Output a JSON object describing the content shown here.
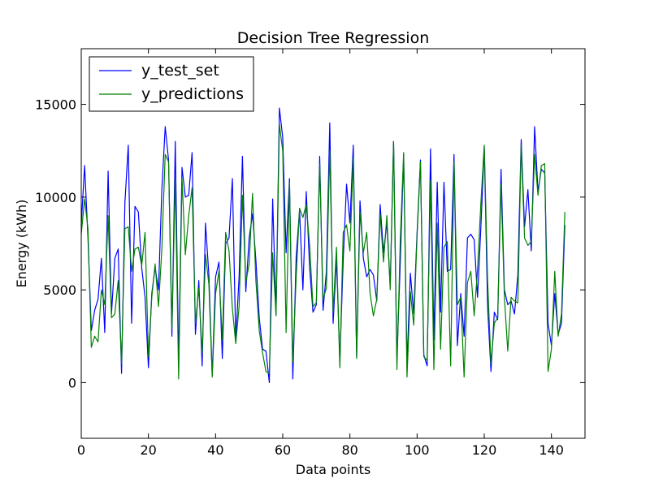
{
  "chart_data": {
    "type": "line",
    "title": "Decision Tree Regression",
    "xlabel": "Data points",
    "ylabel": "Energy (kWh)",
    "xlim": [
      0,
      150
    ],
    "ylim": [
      -3000,
      18000
    ],
    "xticks": [
      0,
      20,
      40,
      60,
      80,
      100,
      120,
      140
    ],
    "yticks": [
      0,
      5000,
      10000,
      15000
    ],
    "xtick_labels": [
      "0",
      "20",
      "40",
      "60",
      "80",
      "100",
      "120",
      "140"
    ],
    "ytick_labels": [
      "0",
      "5000",
      "10000",
      "15000"
    ],
    "grid": false,
    "legend_position": "top-left",
    "series": [
      {
        "name": "y_test_set",
        "color": "#0000ff",
        "values": [
          8500,
          11700,
          7800,
          2800,
          3900,
          4500,
          6700,
          2700,
          11400,
          3700,
          6700,
          7200,
          500,
          9700,
          12800,
          3200,
          9500,
          9200,
          6200,
          4600,
          800,
          4800,
          6200,
          5000,
          10400,
          13800,
          12000,
          2500,
          13000,
          1100,
          11600,
          10000,
          10100,
          12400,
          2600,
          5500,
          900,
          8600,
          5800,
          400,
          5700,
          6500,
          1300,
          7500,
          7800,
          11000,
          2300,
          5700,
          12200,
          4900,
          7800,
          9100,
          6600,
          3500,
          1800,
          1700,
          0,
          9900,
          3700,
          14800,
          13200,
          7000,
          11000,
          200,
          6800,
          9300,
          5000,
          10300,
          6200,
          3800,
          4200,
          12200,
          3900,
          6000,
          14000,
          3200,
          6700,
          1200,
          6600,
          10700,
          8600,
          12800,
          1400,
          9800,
          6700,
          5700,
          6100,
          5800,
          4400,
          9600,
          7000,
          8600,
          5200,
          13000,
          1300,
          6500,
          12300,
          1000,
          5900,
          3700,
          8100,
          12000,
          1500,
          900,
          12600,
          2300,
          10800,
          3800,
          10800,
          6000,
          6100,
          12300,
          2000,
          4800,
          2500,
          7800,
          8000,
          7700,
          4600,
          8400,
          12700,
          4100,
          600,
          3800,
          3400,
          11500,
          5000,
          4200,
          4400,
          3700,
          5800,
          13100,
          8400,
          10400,
          7100,
          13800,
          10300,
          11500,
          11300,
          3200,
          2000,
          4800,
          2600,
          3200,
          8500
        ]
      },
      {
        "name": "y_predictions",
        "color": "#008000",
        "values": [
          8000,
          9900,
          8300,
          1900,
          2500,
          2200,
          5000,
          4200,
          9000,
          3500,
          3700,
          5500,
          1000,
          8300,
          8400,
          6000,
          7200,
          7300,
          6300,
          8100,
          1400,
          4600,
          6400,
          4100,
          7200,
          12300,
          11900,
          2900,
          11000,
          200,
          11000,
          6900,
          9000,
          10500,
          3200,
          5100,
          1600,
          6900,
          5300,
          300,
          4800,
          6000,
          2300,
          8100,
          7100,
          4000,
          2100,
          4100,
          10100,
          5400,
          6400,
          10200,
          5500,
          2800,
          1600,
          600,
          500,
          7000,
          3600,
          13900,
          12500,
          2700,
          10800,
          1100,
          5700,
          9400,
          8900,
          9600,
          7400,
          4100,
          4300,
          11800,
          4500,
          5100,
          12500,
          3800,
          7300,
          800,
          8100,
          8500,
          7100,
          12100,
          1300,
          9200,
          7000,
          8100,
          4800,
          3600,
          4500,
          9100,
          6500,
          9000,
          5000,
          13000,
          700,
          7700,
          12400,
          300,
          4900,
          3100,
          7900,
          11900,
          1400,
          1200,
          10900,
          700,
          8600,
          1800,
          7300,
          7600,
          900,
          11900,
          4200,
          4600,
          300,
          5400,
          6000,
          3600,
          6100,
          9700,
          12800,
          5500,
          1000,
          3200,
          3500,
          10700,
          4600,
          1700,
          4600,
          4400,
          4300,
          12800,
          7800,
          7400,
          7600,
          12300,
          10100,
          11700,
          11800,
          600,
          1800,
          6000,
          2500,
          3700,
          9200
        ]
      }
    ]
  }
}
